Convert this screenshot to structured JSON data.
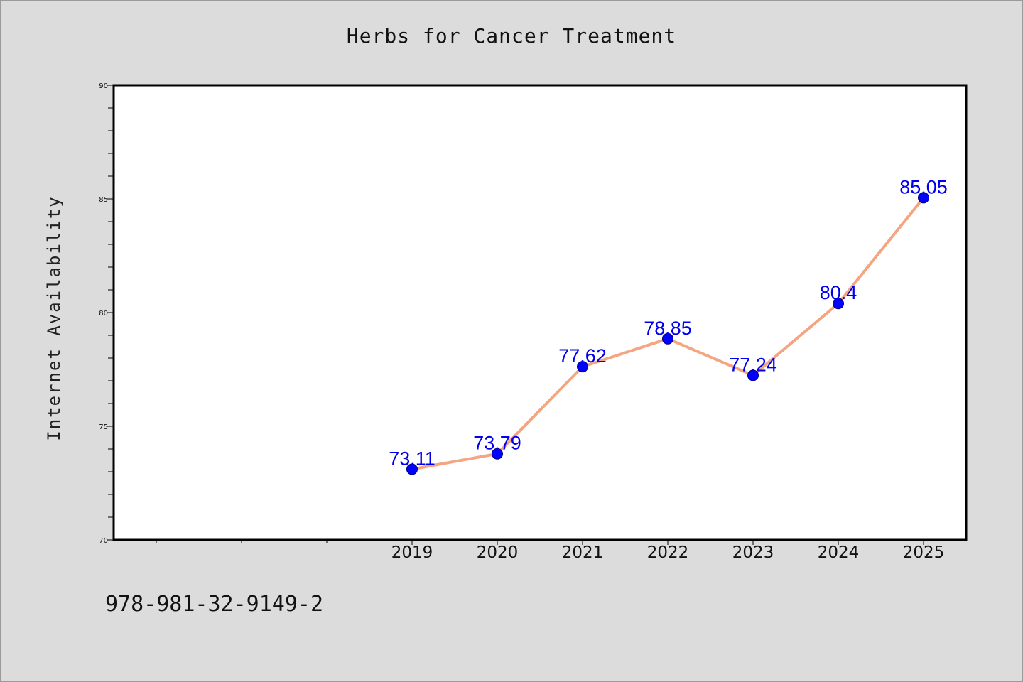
{
  "chart_data": {
    "type": "line",
    "title": "Herbs for Cancer Treatment",
    "xlabel": "",
    "ylabel": "Internet Availability",
    "categories": [
      "2019",
      "2020",
      "2021",
      "2022",
      "2023",
      "2024",
      "2025"
    ],
    "x_slots": 10,
    "first_category_slot": 3,
    "series": [
      {
        "values": [
          73.11,
          73.79,
          77.62,
          78.85,
          77.24,
          80.4,
          85.05
        ],
        "color": "#f4a582",
        "marker_color": "#0000ff"
      }
    ],
    "data_labels": [
      "73.11",
      "73.79",
      "77.62",
      "78.85",
      "77.24",
      "80.4",
      "85.05"
    ],
    "ylim": [
      70,
      90
    ],
    "yticks": [
      70,
      75,
      80,
      85,
      90
    ],
    "y_minor_step": 1,
    "label_color": "#0000ee",
    "grid": false,
    "legend": "none"
  },
  "footer_text": "978-981-32-9149-2",
  "colors": {
    "background": "#dcdcdc",
    "plot_background": "#ffffff",
    "line": "#f4a582",
    "marker": "#0000ff"
  }
}
